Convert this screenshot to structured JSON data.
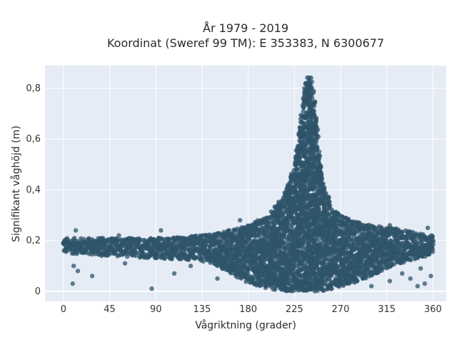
{
  "chart_data": {
    "type": "scatter",
    "title": "År 1979 - 2019",
    "subtitle": "Koordinat (Sweref 99 TM): E 353383, N 6300677",
    "xlabel": "Vågriktning (grader)",
    "ylabel": "Signifikant våghöjd (m)",
    "xlim": [
      -18,
      373
    ],
    "ylim": [
      -0.04,
      0.89
    ],
    "xticks": [
      0,
      45,
      90,
      135,
      180,
      225,
      270,
      315,
      360
    ],
    "xtick_labels": [
      "0",
      "45",
      "90",
      "135",
      "180",
      "225",
      "270",
      "315",
      "360"
    ],
    "yticks": [
      0,
      0.2,
      0.4,
      0.6,
      0.8
    ],
    "ytick_labels": [
      "0",
      "0,2",
      "0,4",
      "0,6",
      "0,8"
    ],
    "grid": true,
    "background": "#e5ecf6",
    "marker_color": "#2f5469",
    "marker_opacity": 0.75,
    "envelope": [
      {
        "x": 0,
        "low": 0.15,
        "high": 0.21
      },
      {
        "x": 45,
        "low": 0.14,
        "high": 0.21
      },
      {
        "x": 90,
        "low": 0.13,
        "high": 0.21
      },
      {
        "x": 135,
        "low": 0.12,
        "high": 0.22
      },
      {
        "x": 160,
        "low": 0.08,
        "high": 0.24
      },
      {
        "x": 180,
        "low": 0.03,
        "high": 0.26
      },
      {
        "x": 200,
        "low": 0.01,
        "high": 0.3
      },
      {
        "x": 215,
        "low": 0.0,
        "high": 0.38
      },
      {
        "x": 225,
        "low": 0.0,
        "high": 0.5
      },
      {
        "x": 232,
        "low": 0.0,
        "high": 0.72
      },
      {
        "x": 237,
        "low": 0.0,
        "high": 0.85
      },
      {
        "x": 242,
        "low": 0.0,
        "high": 0.85
      },
      {
        "x": 246,
        "low": 0.0,
        "high": 0.72
      },
      {
        "x": 252,
        "low": 0.0,
        "high": 0.45
      },
      {
        "x": 262,
        "low": 0.01,
        "high": 0.32
      },
      {
        "x": 280,
        "low": 0.03,
        "high": 0.28
      },
      {
        "x": 300,
        "low": 0.06,
        "high": 0.26
      },
      {
        "x": 320,
        "low": 0.1,
        "high": 0.25
      },
      {
        "x": 345,
        "low": 0.13,
        "high": 0.23
      },
      {
        "x": 360,
        "low": 0.14,
        "high": 0.22
      }
    ],
    "outliers": [
      {
        "x": 9,
        "y": 0.03
      },
      {
        "x": 10,
        "y": 0.1
      },
      {
        "x": 14,
        "y": 0.08
      },
      {
        "x": 28,
        "y": 0.06
      },
      {
        "x": 37,
        "y": 0.14
      },
      {
        "x": 86,
        "y": 0.01
      },
      {
        "x": 60,
        "y": 0.11
      },
      {
        "x": 108,
        "y": 0.07
      },
      {
        "x": 12,
        "y": 0.24
      },
      {
        "x": 95,
        "y": 0.24
      },
      {
        "x": 150,
        "y": 0.05
      },
      {
        "x": 165,
        "y": 0.09
      },
      {
        "x": 300,
        "y": 0.02
      },
      {
        "x": 318,
        "y": 0.04
      },
      {
        "x": 330,
        "y": 0.07
      },
      {
        "x": 338,
        "y": 0.05
      },
      {
        "x": 345,
        "y": 0.02
      },
      {
        "x": 352,
        "y": 0.03
      },
      {
        "x": 358,
        "y": 0.06
      },
      {
        "x": 348,
        "y": 0.09
      },
      {
        "x": 285,
        "y": 0.12
      },
      {
        "x": 302,
        "y": 0.18
      },
      {
        "x": 265,
        "y": 0.05
      },
      {
        "x": 195,
        "y": 0.04
      },
      {
        "x": 124,
        "y": 0.1
      },
      {
        "x": 54,
        "y": 0.22
      },
      {
        "x": 172,
        "y": 0.28
      },
      {
        "x": 318,
        "y": 0.26
      },
      {
        "x": 355,
        "y": 0.25
      }
    ]
  }
}
